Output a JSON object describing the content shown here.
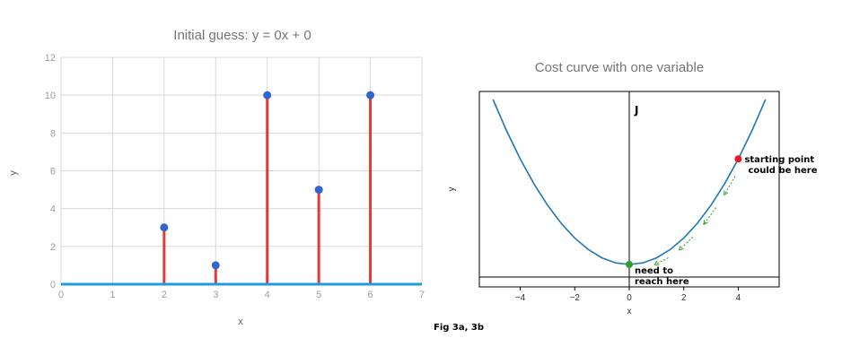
{
  "chart_data": [
    {
      "type": "scatter",
      "title": "Initial guess: y = 0x + 0",
      "xlabel": "x",
      "ylabel": "y",
      "xlim": [
        0,
        7
      ],
      "ylim": [
        0,
        12
      ],
      "x_ticks": [
        "0",
        "1",
        "2",
        "3",
        "4",
        "5",
        "6",
        "7"
      ],
      "y_ticks": [
        "0",
        "2",
        "4",
        "6",
        "8",
        "10",
        "12"
      ],
      "grid": true,
      "points": [
        {
          "x": 2,
          "y": 3
        },
        {
          "x": 3,
          "y": 1
        },
        {
          "x": 4,
          "y": 10
        },
        {
          "x": 5,
          "y": 5
        },
        {
          "x": 6,
          "y": 10
        }
      ],
      "fit_line": {
        "slope": 0,
        "intercept": 0
      },
      "colors": {
        "points": "#3366cc",
        "residuals": "#e53935",
        "fit_line": "#1e9ddb"
      }
    },
    {
      "type": "line",
      "title": "Cost curve with one variable",
      "xlabel": "x",
      "ylabel": "y",
      "xlim": [
        -5.5,
        5.5
      ],
      "x_ticks": [
        "−4",
        "−2",
        "0",
        "2",
        "4"
      ],
      "curve_x": [
        -5,
        -4.5,
        -4,
        -3.5,
        -3,
        -2.5,
        -2,
        -1.5,
        -1,
        -0.5,
        0,
        0.5,
        1,
        1.5,
        2,
        2.5,
        3,
        3.5,
        4,
        4.5,
        5
      ],
      "curve_y": [
        25,
        20.25,
        16,
        12.25,
        9,
        6.25,
        4,
        2.25,
        1,
        0.25,
        0,
        0.25,
        1,
        2.25,
        4,
        6.25,
        9,
        12.25,
        16,
        20.25,
        25
      ],
      "axis_label_J": "J",
      "start_point": {
        "x": 4,
        "y": 16,
        "label_lines": [
          "starting point",
          "could be here"
        ]
      },
      "end_point": {
        "x": 0,
        "y": 0,
        "label_lines": [
          "need to",
          "reach here"
        ]
      },
      "colors": {
        "curve": "#1f77b4",
        "start": "#e8192c",
        "end": "#2ca02c",
        "arrows": "#2ca02c"
      }
    }
  ],
  "caption": "Fig 3a, 3b"
}
